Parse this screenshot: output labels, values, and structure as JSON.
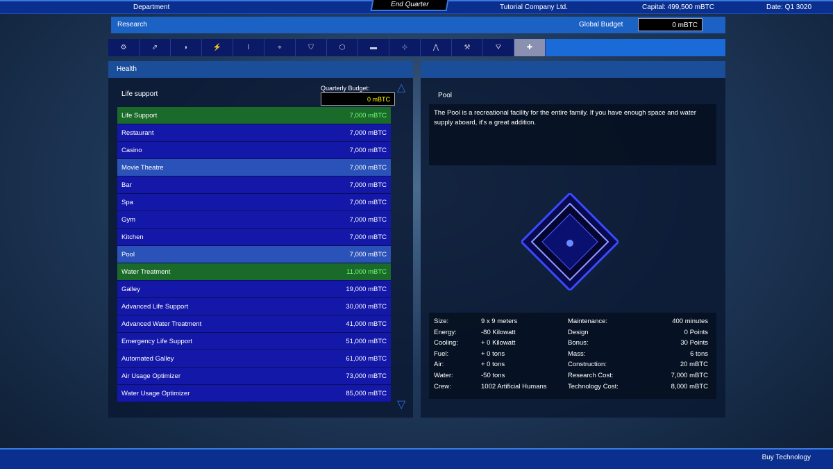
{
  "topbar": {
    "department": "Department",
    "end_quarter": "End Quarter",
    "company": "Tutorial Company Ltd.",
    "capital": "Capital: 499,500 mBTC",
    "date": "Date: Q1 3020"
  },
  "research": {
    "title": "Research",
    "global_budget_label": "Global Budget",
    "global_budget": "0 mBTC"
  },
  "tabs": [
    {
      "icon": "gear-icon",
      "g": "⚙"
    },
    {
      "icon": "engine-icon",
      "g": "⇗"
    },
    {
      "icon": "shield-icon",
      "g": "◗"
    },
    {
      "icon": "energy-icon",
      "g": "⚡"
    },
    {
      "icon": "thermometer-icon",
      "g": "ǀ"
    },
    {
      "icon": "target-icon",
      "g": "⌖"
    },
    {
      "icon": "armor-icon",
      "g": "⛉"
    },
    {
      "icon": "cargo-icon",
      "g": "⬡"
    },
    {
      "icon": "storage-icon",
      "g": "▬"
    },
    {
      "icon": "network-icon",
      "g": "⊹"
    },
    {
      "icon": "compass-icon",
      "g": "⋀"
    },
    {
      "icon": "tools-icon",
      "g": "⚒"
    },
    {
      "icon": "sensor-icon",
      "g": "⛛"
    },
    {
      "icon": "health-icon",
      "g": "✚",
      "active": true
    }
  ],
  "left": {
    "title": "Health",
    "section": "Life support",
    "quarterly_budget_label": "Quarterly Budget:",
    "quarterly_budget": "0 mBTC",
    "items": [
      {
        "name": "Life Support",
        "cost": "7,000 mBTC",
        "state": "green"
      },
      {
        "name": "Restaurant",
        "cost": "7,000 mBTC"
      },
      {
        "name": "Casino",
        "cost": "7,000 mBTC"
      },
      {
        "name": "Movie Theatre",
        "cost": "7,000 mBTC",
        "state": "sel"
      },
      {
        "name": "Bar",
        "cost": "7,000 mBTC"
      },
      {
        "name": "Spa",
        "cost": "7,000 mBTC"
      },
      {
        "name": "Gym",
        "cost": "7,000 mBTC"
      },
      {
        "name": "Kitchen",
        "cost": "7,000 mBTC"
      },
      {
        "name": "Pool",
        "cost": "7,000 mBTC",
        "state": "sel"
      },
      {
        "name": "Water Treatment",
        "cost": "11,000 mBTC",
        "state": "green"
      },
      {
        "name": "Galley",
        "cost": "19,000 mBTC"
      },
      {
        "name": "Advanced Life Support",
        "cost": "30,000 mBTC"
      },
      {
        "name": "Advanced Water Treatment",
        "cost": "41,000 mBTC"
      },
      {
        "name": "Emergency Life Support",
        "cost": "51,000 mBTC"
      },
      {
        "name": "Automated Galley",
        "cost": "61,000 mBTC"
      },
      {
        "name": "Air Usage Optimizer",
        "cost": "73,000 mBTC"
      },
      {
        "name": "Water Usage Optimizer",
        "cost": "85,000 mBTC"
      }
    ]
  },
  "right": {
    "title": "Pool",
    "description": "The Pool is a recreational facility for the entire family. If you have enough space and water supply aboard, it's a great addition.",
    "stats_left": [
      [
        "Size:",
        "9 x 9 meters"
      ],
      [
        "Energy:",
        "-80 Kilowatt"
      ],
      [
        "Cooling:",
        "+ 0 Kilowatt"
      ],
      [
        "Fuel:",
        "+ 0 tons"
      ],
      [
        "Air:",
        "+ 0 tons"
      ],
      [
        "Water:",
        "-50 tons"
      ],
      [
        "Crew:",
        "1002 Artificial Humans"
      ]
    ],
    "stats_right": [
      [
        "Maintenance:",
        "400  minutes"
      ],
      [
        "Design",
        "0 Points"
      ],
      [
        "Bonus:",
        "30 Points"
      ],
      [
        "Mass:",
        "6 tons"
      ],
      [
        "Construction:",
        "20 mBTC"
      ],
      [
        "Research Cost:",
        "7,000 mBTC"
      ],
      [
        "Technology Cost:",
        "8,000 mBTC"
      ]
    ]
  },
  "bottom": {
    "buy": "Buy Technology"
  }
}
